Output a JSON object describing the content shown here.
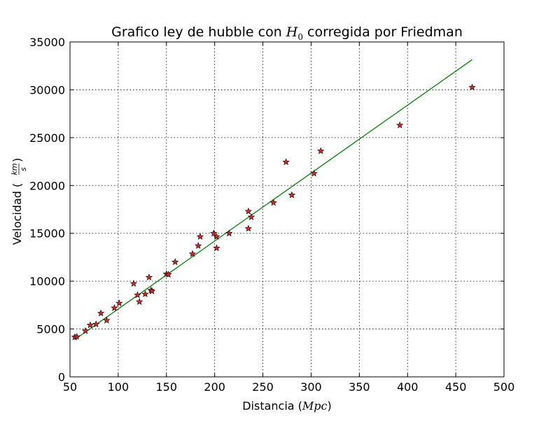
{
  "chart_data": {
    "type": "scatter",
    "title_prefix": "Grafico ley de hubble con ",
    "title_symbol": "H",
    "title_symbol_sub": "0",
    "title_suffix": " corregida por Friedman",
    "xlabel_text": "Distancia (",
    "xlabel_unit": "Mpc",
    "xlabel_close": ")",
    "ylabel_text": "Velocidad (",
    "ylabel_unit_num": "km",
    "ylabel_unit_den": "s",
    "ylabel_close": ")",
    "xlim": [
      50,
      500
    ],
    "ylim": [
      0,
      35000
    ],
    "xticks": [
      "50",
      "100",
      "150",
      "200",
      "250",
      "300",
      "350",
      "400",
      "450",
      "500"
    ],
    "yticks": [
      "0",
      "5000",
      "10000",
      "15000",
      "20000",
      "25000",
      "30000",
      "35000"
    ],
    "grid": true,
    "series": [
      {
        "marker": "star",
        "color": "#d62728",
        "points": [
          [
            55,
            4150
          ],
          [
            57,
            4200
          ],
          [
            66,
            4800
          ],
          [
            71,
            5400
          ],
          [
            77,
            5500
          ],
          [
            82,
            6650
          ],
          [
            88,
            5900
          ],
          [
            96,
            7200
          ],
          [
            101,
            7700
          ],
          [
            116,
            9750
          ],
          [
            120,
            8550
          ],
          [
            122,
            7850
          ],
          [
            128,
            8650
          ],
          [
            132,
            10400
          ],
          [
            134,
            9050
          ],
          [
            135,
            8950
          ],
          [
            150,
            10750
          ],
          [
            152,
            10700
          ],
          [
            159,
            12000
          ],
          [
            177,
            12850
          ],
          [
            183,
            13700
          ],
          [
            185,
            14650
          ],
          [
            199,
            15000
          ],
          [
            202,
            14650
          ],
          [
            202,
            13450
          ],
          [
            215,
            15000
          ],
          [
            235,
            17300
          ],
          [
            235,
            15500
          ],
          [
            238,
            16700
          ],
          [
            261,
            18200
          ],
          [
            274,
            22450
          ],
          [
            280,
            19000
          ],
          [
            303,
            21250
          ],
          [
            310,
            23600
          ],
          [
            392,
            26300
          ],
          [
            467,
            30250
          ]
        ]
      },
      {
        "type": "line",
        "color": "#008000",
        "points": [
          [
            55,
            3900
          ],
          [
            467,
            33150
          ]
        ]
      }
    ]
  }
}
